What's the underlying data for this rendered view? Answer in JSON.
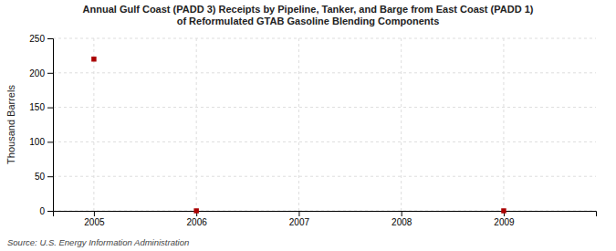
{
  "chart_data": {
    "type": "scatter",
    "title": "Annual Gulf Coast (PADD 3) Receipts by Pipeline, Tanker, and Barge from East Coast (PADD 1)\nof Reformulated GTAB Gasoline Blending Components",
    "ylabel": "Thousand Barrels",
    "annotations": [
      "Source: U.S. Energy Information Administration"
    ],
    "x": [
      2005,
      2006,
      2009
    ],
    "values": [
      220,
      0,
      0
    ],
    "color": "#aa0000",
    "marker": "square",
    "xlim": [
      2004.6,
      2009.9
    ],
    "ylim": [
      0,
      250
    ],
    "xticks": [
      2005,
      2006,
      2007,
      2008,
      2009
    ],
    "yticks": [
      0,
      50,
      100,
      150,
      200,
      250
    ],
    "grid": true
  }
}
